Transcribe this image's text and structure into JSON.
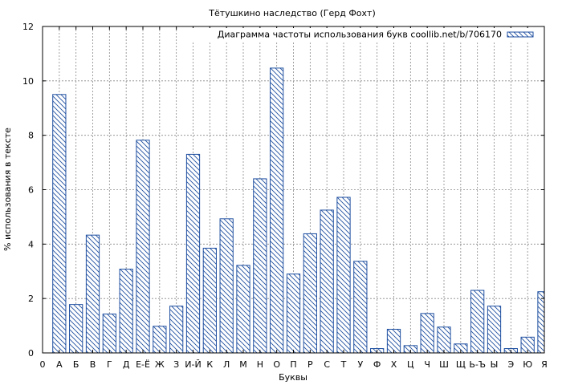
{
  "chart_data": {
    "type": "bar",
    "title": "Тётушкино наследство (Герд Фохт)",
    "xlabel": "Буквы",
    "ylabel": "% использования в тексте",
    "ylim": [
      0,
      12
    ],
    "yticks": [
      0,
      2,
      4,
      6,
      8,
      10,
      12
    ],
    "x_start_label": "0",
    "grid": true,
    "legend_position": "top-right",
    "bar_color": "#1f4fa0",
    "categories": [
      "А",
      "Б",
      "В",
      "Г",
      "Д",
      "Е-Ё",
      "Ж",
      "З",
      "И-Й",
      "К",
      "Л",
      "М",
      "Н",
      "О",
      "П",
      "Р",
      "С",
      "Т",
      "У",
      "Ф",
      "Х",
      "Ц",
      "Ч",
      "Ш",
      "Щ",
      "Ь-Ъ",
      "Ы",
      "Э",
      "Ю",
      "Я"
    ],
    "series": [
      {
        "name": "Диаграмма частоты использования букв coollib.net/b/706170",
        "values": [
          9.5,
          1.78,
          4.33,
          1.43,
          3.08,
          7.82,
          0.98,
          1.72,
          7.3,
          3.85,
          4.93,
          3.22,
          6.4,
          10.47,
          2.9,
          4.38,
          5.25,
          5.72,
          3.37,
          0.16,
          0.87,
          0.27,
          1.45,
          0.95,
          0.33,
          2.3,
          1.72,
          0.16,
          0.58,
          2.25
        ]
      }
    ]
  }
}
